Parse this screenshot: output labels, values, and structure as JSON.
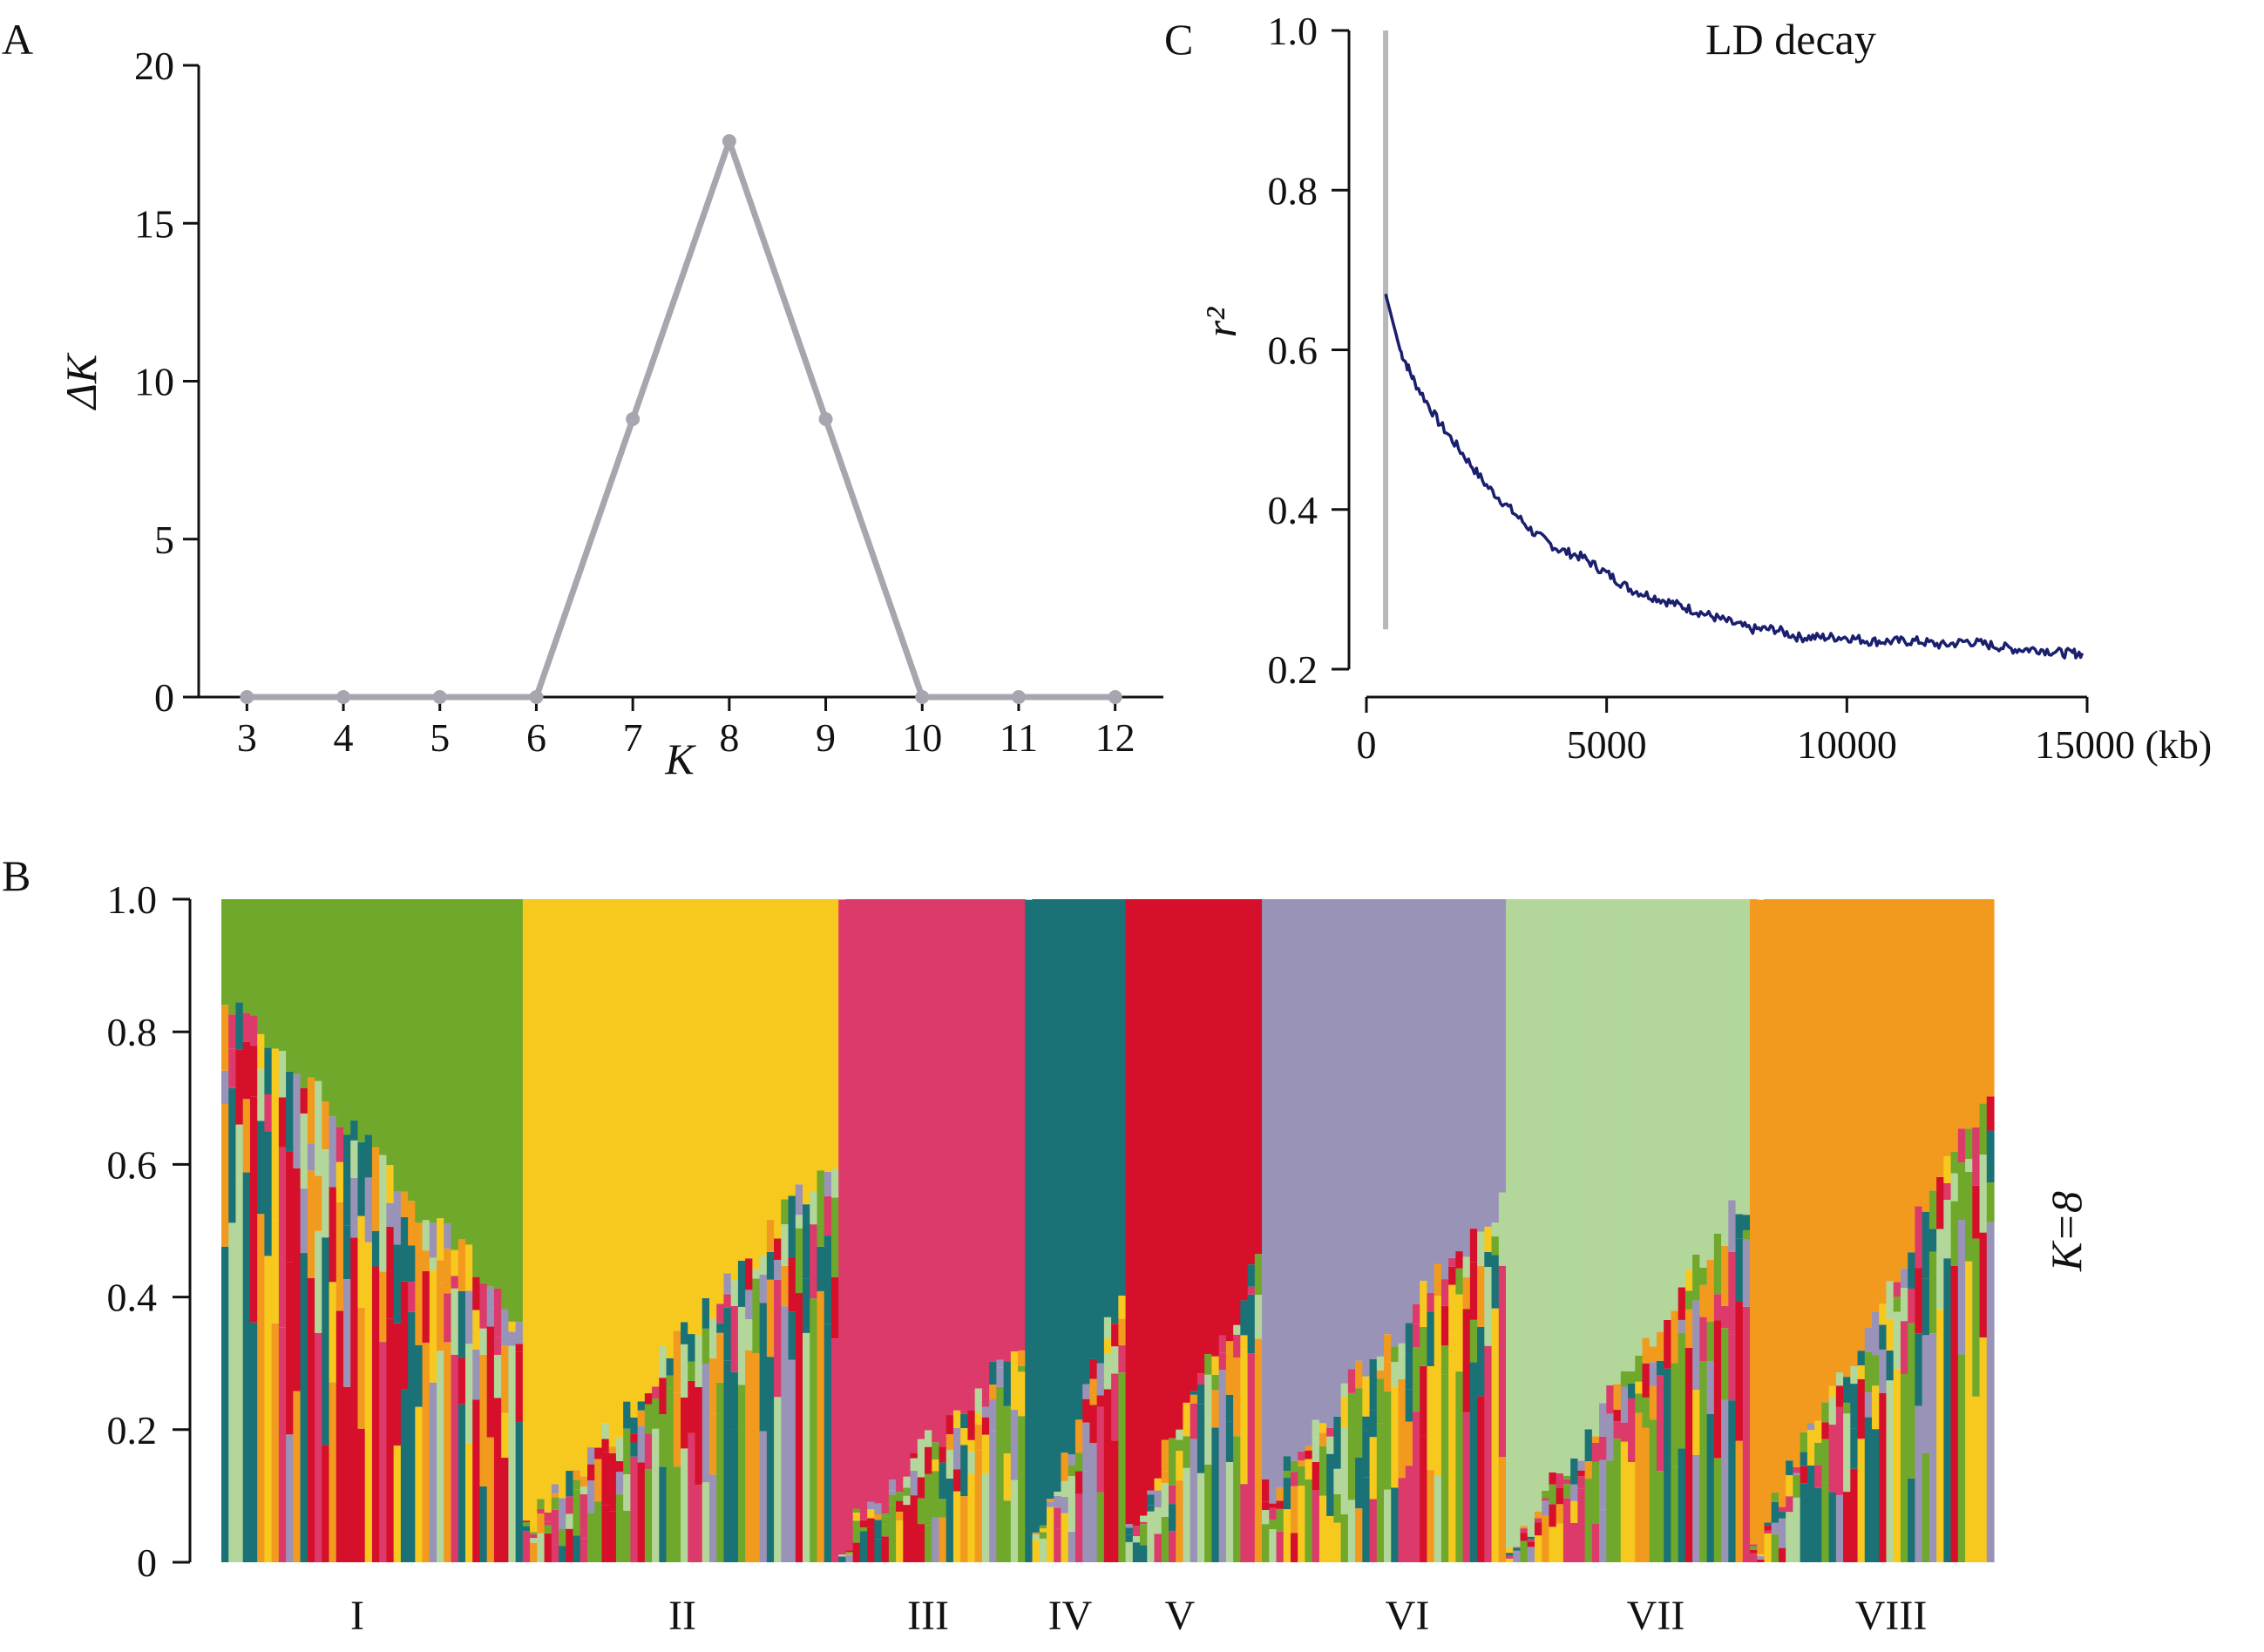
{
  "panels": {
    "A": {
      "letter": "A",
      "xlabel": "K",
      "ylabel": "ΔK",
      "xticks": [
        "3",
        "4",
        "5",
        "6",
        "7",
        "8",
        "9",
        "10",
        "11",
        "12"
      ],
      "yticks": [
        "0",
        "5",
        "10",
        "15",
        "20"
      ]
    },
    "B": {
      "letter": "B",
      "k_label": "K=8",
      "yticks": [
        "0",
        "0.2",
        "0.4",
        "0.6",
        "0.8",
        "1.0"
      ],
      "groups": [
        "I",
        "II",
        "III",
        "IV",
        "V",
        "VI",
        "VII",
        "VIII"
      ]
    },
    "C": {
      "letter": "C",
      "title": "LD decay",
      "ylabel": "r²",
      "xticks": [
        "0",
        "5000",
        "10000",
        "15000 (kb)"
      ],
      "yticks": [
        "0.2",
        "0.4",
        "0.6",
        "0.8",
        "1.0"
      ]
    }
  },
  "colors": {
    "line_a": "#a6a6ae",
    "line_c": "#1a1f6e",
    "vline_c": "#b8b8b8",
    "clusters": [
      "#6fa82a",
      "#f7c81e",
      "#dc3a6a",
      "#1a7276",
      "#d6102a",
      "#9a93b8",
      "#b3d79a",
      "#f29a1e"
    ]
  },
  "chart_data": [
    {
      "id": "delta-k",
      "type": "line",
      "x": [
        3,
        4,
        5,
        6,
        7,
        8,
        9,
        10,
        11,
        12
      ],
      "y": [
        0,
        0,
        0,
        0,
        8.8,
        17.6,
        8.8,
        0,
        0,
        0
      ],
      "xlabel": "K",
      "ylabel": "ΔK",
      "xlim": [
        2.5,
        12.5
      ],
      "ylim": [
        0,
        20
      ],
      "grid": false
    },
    {
      "id": "structure",
      "type": "bar",
      "stacked": true,
      "k": 8,
      "groups": [
        {
          "label": "I",
          "n": 42,
          "main": 0,
          "start_main": 0.15,
          "end_main": 0.62
        },
        {
          "label": "II",
          "n": 44,
          "main": 1,
          "start_main": 0.96,
          "end_main": 0.38
        },
        {
          "label": "III",
          "n": 26,
          "main": 2,
          "start_main": 0.97,
          "end_main": 0.68
        },
        {
          "label": "IV",
          "n": 14,
          "main": 3,
          "start_main": 0.99,
          "end_main": 0.6
        },
        {
          "label": "V",
          "n": 19,
          "main": 4,
          "start_main": 0.95,
          "end_main": 0.55
        },
        {
          "label": "VI",
          "n": 34,
          "main": 5,
          "start_main": 0.9,
          "end_main": 0.45
        },
        {
          "label": "VII",
          "n": 34,
          "main": 6,
          "start_main": 0.98,
          "end_main": 0.45
        },
        {
          "label": "VIII",
          "n": 34,
          "main": 7,
          "start_main": 0.98,
          "end_main": 0.28
        }
      ],
      "ylim": [
        0,
        1
      ],
      "ylabel": ""
    },
    {
      "id": "ld-decay",
      "type": "line",
      "title": "LD decay",
      "ylabel": "r²",
      "xlabel": "(kb)",
      "xlim": [
        0,
        15000
      ],
      "ylim": [
        0.2,
        1.0
      ],
      "vline_x": 400,
      "vline_y": [
        0.25,
        1.0
      ],
      "x": [
        400,
        700,
        1000,
        1500,
        2000,
        2500,
        3000,
        3500,
        4000,
        4500,
        5000,
        5500,
        6000,
        6500,
        7000,
        7500,
        8000,
        8500,
        9000,
        9500,
        10000,
        10500,
        11000,
        11500,
        12000,
        12500,
        13000,
        13500,
        14000,
        14500,
        14900
      ],
      "y": [
        0.67,
        0.6,
        0.56,
        0.51,
        0.47,
        0.43,
        0.4,
        0.37,
        0.35,
        0.34,
        0.32,
        0.3,
        0.29,
        0.28,
        0.27,
        0.26,
        0.25,
        0.25,
        0.24,
        0.24,
        0.24,
        0.235,
        0.235,
        0.235,
        0.23,
        0.235,
        0.23,
        0.225,
        0.225,
        0.22,
        0.22
      ]
    }
  ]
}
